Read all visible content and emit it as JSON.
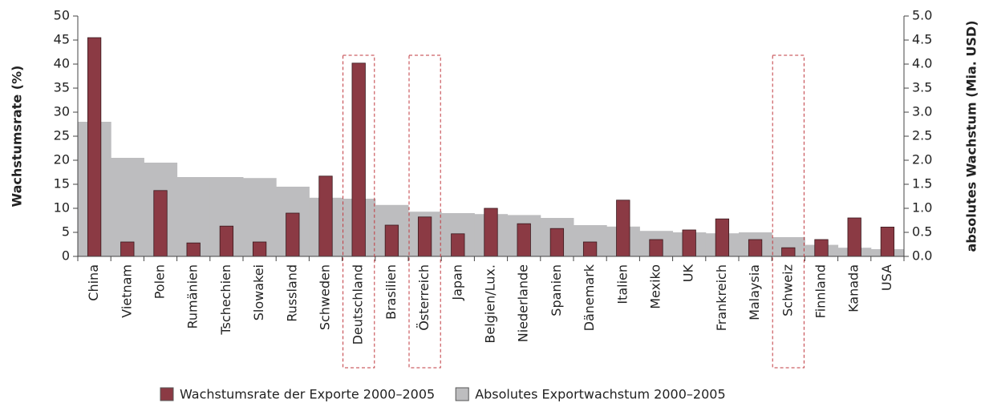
{
  "chart_data": {
    "type": "bar",
    "y_label": "Wachstumsrate (%)",
    "y2_label": "absolutes Wachstum (Mia. USD)",
    "categories": [
      "China",
      "Vietnam",
      "Polen",
      "Rumänien",
      "Tschechien",
      "Slowakei",
      "Russland",
      "Schweden",
      "Deutschland",
      "Brasilien",
      "Österreich",
      "Japan",
      "Belgien/Lux.",
      "Niederlande",
      "Spanien",
      "Dänemark",
      "Italien",
      "Mexiko",
      "UK",
      "Frankreich",
      "Malaysia",
      "Schweiz",
      "Finnland",
      "Kanada",
      "USA"
    ],
    "series": [
      {
        "name": "Absolutes Exportwachstum 2000–2005",
        "color": "#bdbdbf",
        "axis": "y2",
        "values": [
          2.8,
          2.05,
          1.95,
          1.65,
          1.65,
          1.63,
          1.45,
          1.22,
          1.2,
          1.07,
          0.93,
          0.9,
          0.88,
          0.86,
          0.8,
          0.65,
          0.62,
          0.53,
          0.5,
          0.48,
          0.5,
          0.4,
          0.24,
          0.18,
          0.15
        ]
      },
      {
        "name": "Wachstumsrate der Exporte 2000–2005",
        "color": "#8b3a44",
        "values": [
          45.5,
          3,
          13.7,
          2.8,
          6.3,
          3,
          9,
          16.7,
          40.2,
          6.5,
          8.2,
          4.7,
          10,
          6.8,
          5.8,
          3,
          11.7,
          3.5,
          5.5,
          7.8,
          3.5,
          1.8,
          3.5,
          8,
          6.1
        ]
      }
    ],
    "legend_order": [
      1,
      0
    ],
    "highlighted": [
      8,
      10,
      21
    ],
    "ylim": [
      0,
      50
    ],
    "yticks": [
      0,
      5,
      10,
      15,
      20,
      25,
      30,
      35,
      40,
      45,
      50
    ],
    "y2lim": [
      0,
      5
    ],
    "y2ticks": [
      {
        "value": 0,
        "label": "0.0"
      },
      {
        "value": 0.5,
        "label": "0.5"
      },
      {
        "value": 1,
        "label": "1.0"
      },
      {
        "value": 1.5,
        "label": "1.5"
      },
      {
        "value": 2,
        "label": "2.0"
      },
      {
        "value": 2.5,
        "label": "2.5"
      },
      {
        "value": 3,
        "label": "3.0"
      },
      {
        "value": 3.5,
        "label": "3.5"
      },
      {
        "value": 4,
        "label": "4.0"
      },
      {
        "value": 4.5,
        "label": "4.5"
      },
      {
        "value": 5,
        "label": "5.0"
      }
    ]
  }
}
